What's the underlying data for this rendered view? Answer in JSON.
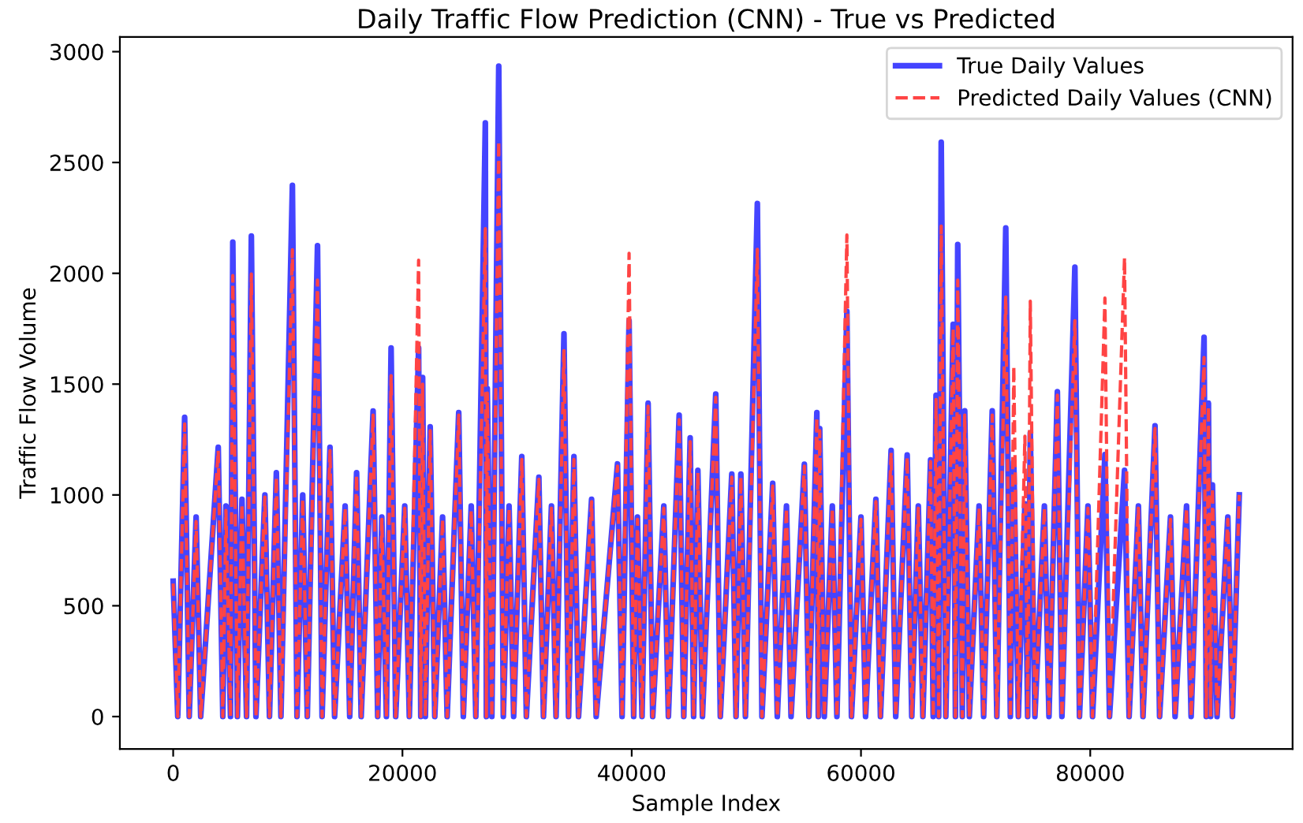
{
  "chart_data": {
    "type": "line",
    "title": "Daily Traffic Flow Prediction (CNN) - True vs Predicted",
    "xlabel": "Sample Index",
    "ylabel": "Traffic Flow Volume",
    "x": [
      0,
      400,
      1000,
      1400,
      2000,
      2400,
      3930,
      4330,
      4600,
      5000,
      5200,
      5600,
      6000,
      6400,
      6820,
      7220,
      8000,
      8400,
      9000,
      9400,
      10400,
      10800,
      11300,
      11700,
      12590,
      12990,
      13680,
      14080,
      15000,
      15400,
      16000,
      16400,
      17440,
      17840,
      18200,
      18600,
      19010,
      19410,
      20200,
      20600,
      21410,
      21600,
      21760,
      22000,
      22420,
      22820,
      23500,
      23900,
      24910,
      25310,
      26000,
      26400,
      27230,
      27320,
      27400,
      27800,
      28400,
      28800,
      29300,
      29700,
      30410,
      30810,
      31900,
      32300,
      33000,
      33400,
      34090,
      34490,
      34960,
      35360,
      36500,
      36900,
      38760,
      39160,
      39770,
      40170,
      40500,
      40900,
      41430,
      41830,
      42800,
      43200,
      44140,
      44540,
      45100,
      45400,
      45770,
      46170,
      47330,
      47730,
      48730,
      49100,
      49520,
      49920,
      50960,
      51360,
      52300,
      52700,
      53500,
      53900,
      55060,
      55460,
      56150,
      56280,
      56400,
      56800,
      57500,
      57900,
      58770,
      59170,
      60000,
      60400,
      61300,
      61700,
      62630,
      63030,
      64030,
      64430,
      65000,
      65400,
      66070,
      66300,
      66550,
      66780,
      67000,
      67400,
      68040,
      68240,
      68440,
      68840,
      69050,
      69450,
      70300,
      70700,
      71450,
      71850,
      72630,
      73030,
      73330,
      73730,
      74300,
      74540,
      74770,
      75170,
      76000,
      76400,
      77130,
      77530,
      78660,
      79060,
      79800,
      80200,
      81280,
      81680,
      82990,
      83390,
      84200,
      84600,
      85650,
      86050,
      87000,
      87400,
      88400,
      88800,
      89930,
      90120,
      90310,
      90500,
      90660,
      91060,
      92000,
      92400,
      93000
    ],
    "series": [
      {
        "name": "True Daily Values",
        "color": "#4444ff",
        "line_style": "solid",
        "values": [
          611,
          0,
          1350,
          0,
          900,
          0,
          1215,
          0,
          950,
          0,
          2141,
          0,
          980,
          0,
          2168,
          0,
          1000,
          0,
          1100,
          0,
          2397,
          0,
          1000,
          0,
          2125,
          0,
          1215,
          0,
          950,
          0,
          1100,
          0,
          1379,
          0,
          900,
          0,
          1663,
          0,
          950,
          0,
          1663,
          0,
          1530,
          0,
          1308,
          0,
          900,
          0,
          1372,
          0,
          950,
          0,
          2679,
          0,
          1480,
          0,
          2935,
          0,
          950,
          0,
          1173,
          0,
          1080,
          0,
          950,
          0,
          1727,
          0,
          1173,
          0,
          980,
          0,
          1140,
          0,
          1786,
          0,
          900,
          0,
          1414,
          0,
          950,
          0,
          1360,
          0,
          1258,
          0,
          1111,
          0,
          1455,
          0,
          1094,
          0,
          1094,
          0,
          2315,
          0,
          1052,
          0,
          950,
          0,
          1139,
          0,
          1372,
          0,
          1300,
          0,
          950,
          0,
          1829,
          0,
          900,
          0,
          980,
          0,
          1201,
          0,
          1180,
          0,
          950,
          0,
          1158,
          0,
          1450,
          0,
          2592,
          0,
          1770,
          0,
          2130,
          0,
          1380,
          0,
          950,
          0,
          1380,
          0,
          2205,
          0,
          1150,
          0,
          960,
          0,
          1280,
          0,
          950,
          0,
          1466,
          0,
          2028,
          0,
          950,
          0,
          1182,
          0,
          1111,
          0,
          950,
          0,
          1312,
          0,
          900,
          0,
          950,
          0,
          1711,
          0,
          1414,
          0,
          1045,
          0,
          900,
          0,
          1000
        ]
      },
      {
        "name": "Predicted Daily Values (CNN)",
        "color": "#ff4444",
        "line_style": "dashed",
        "values": [
          600,
          0,
          1320,
          0,
          880,
          0,
          1200,
          0,
          930,
          0,
          1990,
          0,
          960,
          0,
          1997,
          0,
          990,
          0,
          1080,
          0,
          2106,
          0,
          980,
          0,
          1969,
          0,
          1200,
          0,
          940,
          0,
          1090,
          0,
          1360,
          0,
          890,
          0,
          1538,
          0,
          940,
          0,
          2059,
          0,
          1500,
          0,
          1290,
          0,
          890,
          0,
          1360,
          0,
          930,
          0,
          2201,
          0,
          1460,
          0,
          2596,
          0,
          940,
          0,
          1160,
          0,
          1070,
          0,
          940,
          0,
          1651,
          0,
          1160,
          0,
          970,
          0,
          1130,
          0,
          2090,
          0,
          890,
          0,
          1400,
          0,
          940,
          0,
          1340,
          0,
          1240,
          0,
          1100,
          0,
          1440,
          0,
          1080,
          0,
          1080,
          0,
          2108,
          0,
          1040,
          0,
          940,
          0,
          1130,
          0,
          1350,
          0,
          1290,
          0,
          940,
          0,
          2173,
          0,
          890,
          0,
          970,
          0,
          1190,
          0,
          1170,
          0,
          940,
          0,
          1150,
          0,
          1430,
          0,
          2213,
          0,
          1750,
          0,
          1969,
          0,
          1360,
          0,
          940,
          0,
          1360,
          0,
          1893,
          0,
          1580,
          0,
          1265,
          0,
          1874,
          0,
          940,
          0,
          1450,
          0,
          1786,
          0,
          940,
          0,
          1888,
          0,
          2070,
          0,
          940,
          0,
          1300,
          0,
          890,
          0,
          940,
          0,
          1620,
          0,
          1400,
          0,
          1030,
          0,
          890,
          0,
          1000
        ]
      }
    ],
    "xlim": [
      -4650,
      97650
    ],
    "ylim": [
      -146,
      3066
    ],
    "xticks": [
      0,
      20000,
      40000,
      60000,
      80000
    ],
    "yticks": [
      0,
      500,
      1000,
      1500,
      2000,
      2500,
      3000
    ],
    "legend": "top right",
    "grid": false
  }
}
